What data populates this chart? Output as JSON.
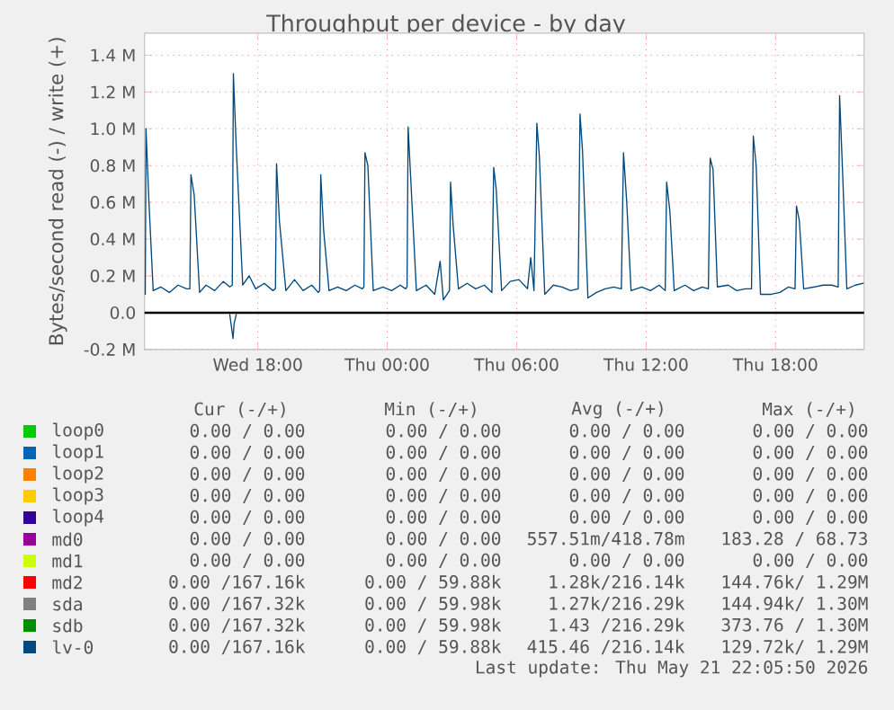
{
  "chart_data": {
    "type": "line",
    "title": "Throughput per device - by day",
    "ylabel": "Bytes/second read (-) / write (+)",
    "xlim": [
      "2026-05-20T12:45",
      "2026-05-21T22:06"
    ],
    "xticks": [
      {
        "value": "2026-05-20T18:00",
        "label": "Wed 18:00"
      },
      {
        "value": "2026-05-21T00:00",
        "label": "Thu 00:00"
      },
      {
        "value": "2026-05-21T06:00",
        "label": "Thu 06:00"
      },
      {
        "value": "2026-05-21T12:00",
        "label": "Thu 12:00"
      },
      {
        "value": "2026-05-21T18:00",
        "label": "Thu 18:00"
      }
    ],
    "ylim": [
      -200000,
      1520000
    ],
    "yticks": [
      {
        "value": -200000,
        "label": "-0.2 M"
      },
      {
        "value": 0,
        "label": "0.0"
      },
      {
        "value": 200000,
        "label": "0.2 M"
      },
      {
        "value": 400000,
        "label": "0.4 M"
      },
      {
        "value": 600000,
        "label": "0.6 M"
      },
      {
        "value": 800000,
        "label": "0.8 M"
      },
      {
        "value": 1000000,
        "label": "1.0 M"
      },
      {
        "value": 1200000,
        "label": "1.2 M"
      },
      {
        "value": 1400000,
        "label": "1.4 M"
      }
    ],
    "grid": true,
    "legend": "bottom",
    "ref_lines": [
      {
        "axis": "y",
        "value": 0,
        "color": "#000000"
      }
    ],
    "series": [
      {
        "name": "loop0",
        "color": "#00cc00"
      },
      {
        "name": "loop1",
        "color": "#0066b3"
      },
      {
        "name": "loop2",
        "color": "#ff8000"
      },
      {
        "name": "loop3",
        "color": "#ffcc00"
      },
      {
        "name": "loop4",
        "color": "#330099"
      },
      {
        "name": "md0",
        "color": "#990099"
      },
      {
        "name": "md1",
        "color": "#ccff00"
      },
      {
        "name": "md2",
        "color": "#ff0000"
      },
      {
        "name": "sda",
        "color": "#808080"
      },
      {
        "name": "sdb",
        "color": "#008f00"
      },
      {
        "name": "lv-0",
        "color": "#00487d",
        "x": [
          "2026-05-20T12:47",
          "2026-05-20T12:49",
          "2026-05-20T12:57",
          "2026-05-20T13:09",
          "2026-05-20T13:30",
          "2026-05-20T13:54",
          "2026-05-20T14:18",
          "2026-05-20T14:42",
          "2026-05-20T14:51",
          "2026-05-20T14:54",
          "2026-05-20T15:03",
          "2026-05-20T15:18",
          "2026-05-20T15:36",
          "2026-05-20T16:00",
          "2026-05-20T16:24",
          "2026-05-20T16:42",
          "2026-05-20T16:49",
          "2026-05-20T16:52",
          "2026-05-20T17:00",
          "2026-05-20T17:18",
          "2026-05-20T17:36",
          "2026-05-20T17:54",
          "2026-05-20T18:18",
          "2026-05-20T18:42",
          "2026-05-20T18:49",
          "2026-05-20T18:52",
          "2026-05-20T19:00",
          "2026-05-20T19:18",
          "2026-05-20T19:42",
          "2026-05-20T20:06",
          "2026-05-20T20:30",
          "2026-05-20T20:48",
          "2026-05-20T20:52",
          "2026-05-20T20:55",
          "2026-05-20T21:03",
          "2026-05-20T21:18",
          "2026-05-20T21:42",
          "2026-05-20T22:06",
          "2026-05-20T22:30",
          "2026-05-20T22:51",
          "2026-05-20T22:55",
          "2026-05-20T22:58",
          "2026-05-20T23:06",
          "2026-05-20T23:21",
          "2026-05-20T23:48",
          "2026-05-21T00:12",
          "2026-05-21T00:36",
          "2026-05-21T00:51",
          "2026-05-21T00:55",
          "2026-05-21T00:58",
          "2026-05-21T01:06",
          "2026-05-21T01:21",
          "2026-05-21T01:48",
          "2026-05-21T02:12",
          "2026-05-21T02:27",
          "2026-05-21T02:36",
          "2026-05-21T02:53",
          "2026-05-21T02:56",
          "2026-05-21T03:03",
          "2026-05-21T03:18",
          "2026-05-21T03:42",
          "2026-05-21T04:06",
          "2026-05-21T04:30",
          "2026-05-21T04:51",
          "2026-05-21T04:56",
          "2026-05-21T05:03",
          "2026-05-21T05:18",
          "2026-05-21T05:42",
          "2026-05-21T06:06",
          "2026-05-21T06:30",
          "2026-05-21T06:39",
          "2026-05-21T06:48",
          "2026-05-21T06:56",
          "2026-05-21T07:03",
          "2026-05-21T07:18",
          "2026-05-21T07:42",
          "2026-05-21T08:06",
          "2026-05-21T08:30",
          "2026-05-21T08:51",
          "2026-05-21T08:56",
          "2026-05-21T09:03",
          "2026-05-21T09:18",
          "2026-05-21T09:42",
          "2026-05-21T10:06",
          "2026-05-21T10:30",
          "2026-05-21T10:51",
          "2026-05-21T10:57",
          "2026-05-21T11:06",
          "2026-05-21T11:18",
          "2026-05-21T11:48",
          "2026-05-21T12:12",
          "2026-05-21T12:36",
          "2026-05-21T12:53",
          "2026-05-21T12:57",
          "2026-05-21T13:06",
          "2026-05-21T13:18",
          "2026-05-21T13:48",
          "2026-05-21T14:12",
          "2026-05-21T14:36",
          "2026-05-21T14:53",
          "2026-05-21T14:58",
          "2026-05-21T15:06",
          "2026-05-21T15:18",
          "2026-05-21T15:48",
          "2026-05-21T16:12",
          "2026-05-21T16:36",
          "2026-05-21T16:53",
          "2026-05-21T16:58",
          "2026-05-21T17:06",
          "2026-05-21T17:18",
          "2026-05-21T17:48",
          "2026-05-21T18:12",
          "2026-05-21T18:36",
          "2026-05-21T18:54",
          "2026-05-21T18:58",
          "2026-05-21T19:06",
          "2026-05-21T19:18",
          "2026-05-21T19:48",
          "2026-05-21T20:12",
          "2026-05-21T20:36",
          "2026-05-21T20:54",
          "2026-05-21T20:58",
          "2026-05-21T21:06",
          "2026-05-21T21:18",
          "2026-05-21T21:42",
          "2026-05-21T22:04"
        ],
        "values": [
          100000,
          1000000,
          610000,
          120000,
          140000,
          110000,
          150000,
          130000,
          130000,
          750000,
          640000,
          110000,
          150000,
          120000,
          170000,
          140000,
          150000,
          1300000,
          900000,
          150000,
          200000,
          130000,
          160000,
          120000,
          130000,
          810000,
          500000,
          120000,
          180000,
          120000,
          150000,
          110000,
          120000,
          750000,
          450000,
          120000,
          140000,
          120000,
          150000,
          130000,
          140000,
          870000,
          800000,
          120000,
          140000,
          120000,
          150000,
          130000,
          140000,
          1010000,
          700000,
          120000,
          150000,
          100000,
          280000,
          70000,
          120000,
          710000,
          480000,
          130000,
          160000,
          130000,
          150000,
          110000,
          790000,
          670000,
          120000,
          170000,
          180000,
          130000,
          300000,
          120000,
          1030000,
          850000,
          100000,
          150000,
          140000,
          120000,
          130000,
          1080000,
          880000,
          80000,
          110000,
          130000,
          140000,
          130000,
          870000,
          600000,
          120000,
          140000,
          120000,
          150000,
          120000,
          710000,
          550000,
          120000,
          150000,
          120000,
          140000,
          130000,
          840000,
          780000,
          140000,
          150000,
          120000,
          130000,
          130000,
          960000,
          800000,
          100000,
          100000,
          110000,
          140000,
          130000,
          580000,
          500000,
          130000,
          140000,
          150000,
          150000,
          140000,
          1180000,
          780000,
          130000,
          150000,
          160000
        ]
      },
      {
        "color": "#00487d",
        "x": [
          "2026-05-20T16:42",
          "2026-05-20T16:51",
          "2026-05-20T16:54",
          "2026-05-20T17:00"
        ],
        "values": [
          -10000,
          -140000,
          -60000,
          -10000
        ]
      }
    ],
    "annotations": [
      "Cur (-/+)",
      "Min (-/+)",
      "Avg (-/+)",
      "Max (-/+)",
      "0.00 / 0.00",
      "0.00 / 0.00",
      "0.00 / 0.00",
      "0.00 / 0.00",
      "0.00 / 0.00",
      "0.00 / 0.00",
      "0.00 / 0.00",
      "0.00 / 0.00",
      "0.00 / 0.00",
      "0.00 / 0.00",
      "0.00 / 0.00",
      "0.00 / 0.00",
      "0.00 / 0.00",
      "0.00 / 0.00",
      "0.00 / 0.00",
      "0.00 / 0.00",
      "0.00 / 0.00",
      "0.00 / 0.00",
      "0.00 / 0.00",
      "0.00 / 0.00",
      "0.00 / 0.00",
      "0.00 / 0.00",
      "557.51m/418.78m",
      "183.28 / 68.73",
      "0.00 / 0.00",
      "0.00 / 0.00",
      "0.00 / 0.00",
      "0.00 / 0.00",
      "0.00 /167.16k",
      "0.00 / 59.88k",
      "1.28k/216.14k",
      "144.76k/ 1.29M",
      "0.00 /167.32k",
      "0.00 / 59.98k",
      "1.27k/216.29k",
      "144.94k/ 1.30M",
      "0.00 /167.32k",
      "0.00 / 59.98k",
      "1.43 /216.29k",
      "373.76 / 1.30M",
      "0.00 /167.16k",
      "0.00 / 59.88k",
      "415.46 /216.14k",
      "129.72k/ 1.29M",
      "Last update: Thu May 21 22:05:50 2026"
    ]
  }
}
